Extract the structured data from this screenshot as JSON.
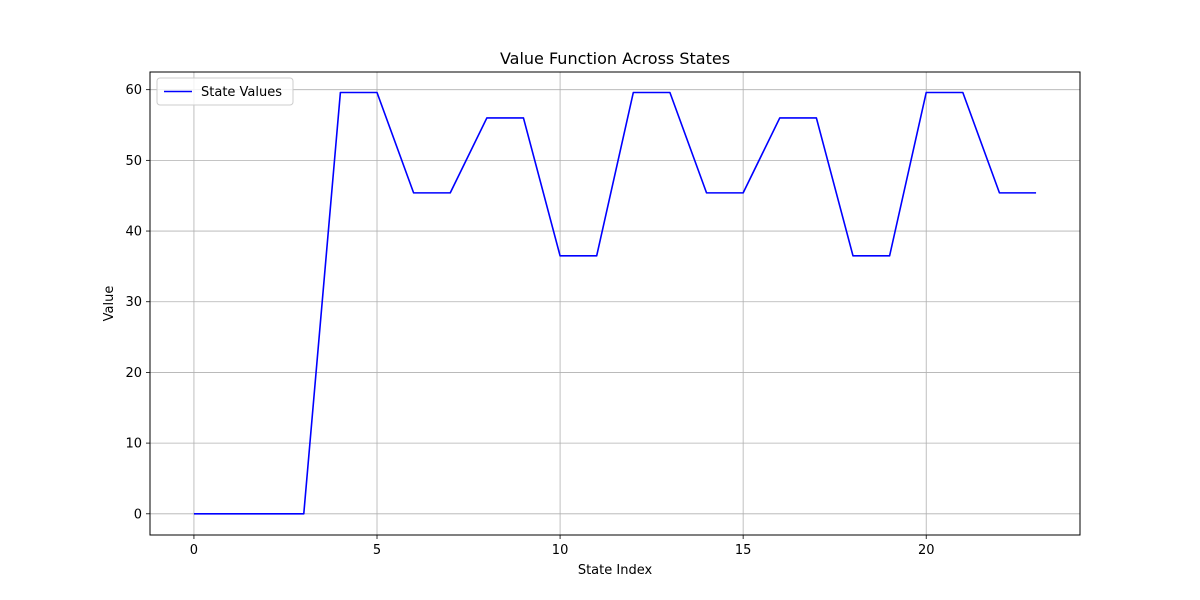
{
  "chart_data": {
    "type": "line",
    "title": "Value Function Across States",
    "xlabel": "State Index",
    "ylabel": "Value",
    "xlim": [
      -1.2,
      24.2
    ],
    "ylim": [
      -3.0,
      62.5
    ],
    "xticks": [
      0,
      5,
      10,
      15,
      20
    ],
    "yticks": [
      0,
      10,
      20,
      30,
      40,
      50,
      60
    ],
    "grid": true,
    "legend_position": "top-left",
    "series": [
      {
        "name": "State Values",
        "color": "#0000ff",
        "x": [
          0,
          1,
          2,
          3,
          4,
          5,
          6,
          7,
          8,
          9,
          10,
          11,
          12,
          13,
          14,
          15,
          16,
          17,
          18,
          19,
          20,
          21,
          22,
          23
        ],
        "values": [
          0,
          0,
          0,
          0,
          59.6,
          59.6,
          45.4,
          45.4,
          56.0,
          56.0,
          36.5,
          36.5,
          59.6,
          59.6,
          45.4,
          45.4,
          56.0,
          56.0,
          36.5,
          36.5,
          59.6,
          59.6,
          45.4,
          45.4
        ]
      }
    ]
  }
}
